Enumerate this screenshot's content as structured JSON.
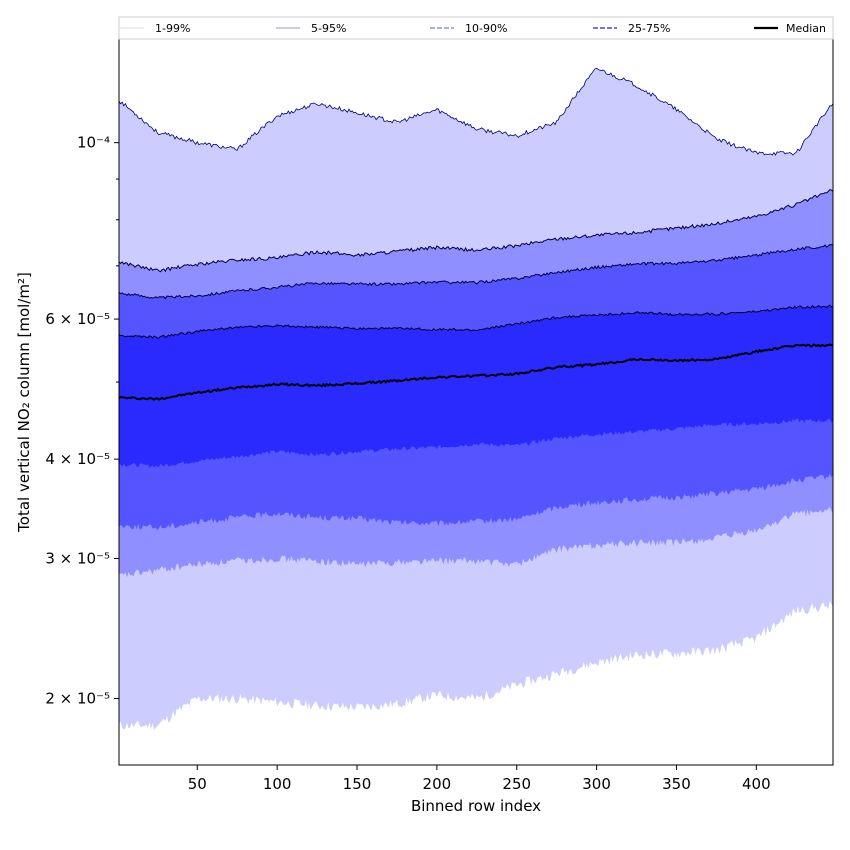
{
  "chart_data": {
    "type": "area",
    "xlabel": "Binned row index",
    "ylabel": "Total vertical NO₂ column [mol/m²]",
    "yscale": "log",
    "xlim": [
      1,
      448
    ],
    "ylim": [
      1.65e-05,
      0.000135
    ],
    "grid": false,
    "legend_placement": "top",
    "x_ticks": [
      50,
      100,
      150,
      200,
      250,
      300,
      350,
      400
    ],
    "y_ticks": [
      {
        "value": 2e-05,
        "label": "2 × 10⁻⁵"
      },
      {
        "value": 3e-05,
        "label": "3 × 10⁻⁵"
      },
      {
        "value": 4e-05,
        "label": "4 × 10⁻⁵"
      },
      {
        "value": 6e-05,
        "label": "6 × 10⁻⁵"
      },
      {
        "value": 0.0001,
        "label": "10⁻⁴"
      }
    ],
    "x": [
      1,
      25,
      50,
      75,
      100,
      125,
      150,
      175,
      200,
      225,
      250,
      275,
      300,
      325,
      350,
      375,
      400,
      425,
      448
    ],
    "series": [
      {
        "name": "1-99%",
        "lower": [
          1.85e-05,
          1.85e-05,
          2e-05,
          2e-05,
          1.98e-05,
          1.96e-05,
          1.95e-05,
          1.97e-05,
          2.02e-05,
          2e-05,
          2.08e-05,
          2.15e-05,
          2.22e-05,
          2.27e-05,
          2.28e-05,
          2.3e-05,
          2.38e-05,
          2.58e-05,
          2.62e-05
        ],
        "upper": [
          0.000113,
          0.000103,
          0.0001,
          9.8e-05,
          0.000108,
          0.000112,
          0.000109,
          0.000106,
          0.00011,
          0.000104,
          0.000102,
          0.000106,
          0.000124,
          0.000118,
          0.00011,
          0.000101,
          9.7e-05,
          9.7e-05,
          0.000112
        ],
        "color": "#ccccff"
      },
      {
        "name": "5-95%",
        "lower": [
          2.85e-05,
          2.9e-05,
          2.95e-05,
          2.98e-05,
          3e-05,
          2.98e-05,
          2.95e-05,
          2.97e-05,
          2.98e-05,
          2.98e-05,
          2.95e-05,
          3.08e-05,
          3.12e-05,
          3.14e-05,
          3.14e-05,
          3.18e-05,
          3.25e-05,
          3.42e-05,
          3.45e-05
        ],
        "upper": [
          7.08e-05,
          6.9e-05,
          7.03e-05,
          7.12e-05,
          7.16e-05,
          7.29e-05,
          7.22e-05,
          7.3e-05,
          7.38e-05,
          7.32e-05,
          7.42e-05,
          7.57e-05,
          7.65e-05,
          7.71e-05,
          7.81e-05,
          7.91e-05,
          8.08e-05,
          8.36e-05,
          8.72e-05
        ],
        "color": "#8f8fff"
      },
      {
        "name": "10-90%",
        "lower": [
          3.3e-05,
          3.28e-05,
          3.33e-05,
          3.38e-05,
          3.42e-05,
          3.38e-05,
          3.37e-05,
          3.33e-05,
          3.32e-05,
          3.34e-05,
          3.36e-05,
          3.48e-05,
          3.53e-05,
          3.56e-05,
          3.58e-05,
          3.62e-05,
          3.67e-05,
          3.76e-05,
          3.81e-05
        ],
        "upper": [
          6.47e-05,
          6.38e-05,
          6.42e-05,
          6.51e-05,
          6.58e-05,
          6.66e-05,
          6.64e-05,
          6.64e-05,
          6.68e-05,
          6.67e-05,
          6.75e-05,
          6.87e-05,
          6.97e-05,
          7.04e-05,
          7.05e-05,
          7.11e-05,
          7.22e-05,
          7.35e-05,
          7.42e-05
        ],
        "color": "#5555ff"
      },
      {
        "name": "25-75%",
        "lower": [
          3.94e-05,
          3.92e-05,
          3.98e-05,
          4.03e-05,
          4.09e-05,
          4.05e-05,
          4.09e-05,
          4.12e-05,
          4.14e-05,
          4.18e-05,
          4.16e-05,
          4.25e-05,
          4.3e-05,
          4.33e-05,
          4.37e-05,
          4.42e-05,
          4.43e-05,
          4.47e-05,
          4.47e-05
        ],
        "upper": [
          5.72e-05,
          5.69e-05,
          5.79e-05,
          5.86e-05,
          5.89e-05,
          5.86e-05,
          5.84e-05,
          5.84e-05,
          5.82e-05,
          5.81e-05,
          5.92e-05,
          6.03e-05,
          6.07e-05,
          6.11e-05,
          6.08e-05,
          6.09e-05,
          6.13e-05,
          6.21e-05,
          6.23e-05
        ],
        "color": "#2a2aff"
      },
      {
        "name": "Median",
        "values": [
          4.78e-05,
          4.76e-05,
          4.85e-05,
          4.92e-05,
          4.97e-05,
          4.95e-05,
          4.98e-05,
          5.02e-05,
          5.07e-05,
          5.09e-05,
          5.12e-05,
          5.22e-05,
          5.26e-05,
          5.34e-05,
          5.32e-05,
          5.34e-05,
          5.46e-05,
          5.56e-05,
          5.56e-05
        ],
        "color": "#000000"
      }
    ]
  }
}
